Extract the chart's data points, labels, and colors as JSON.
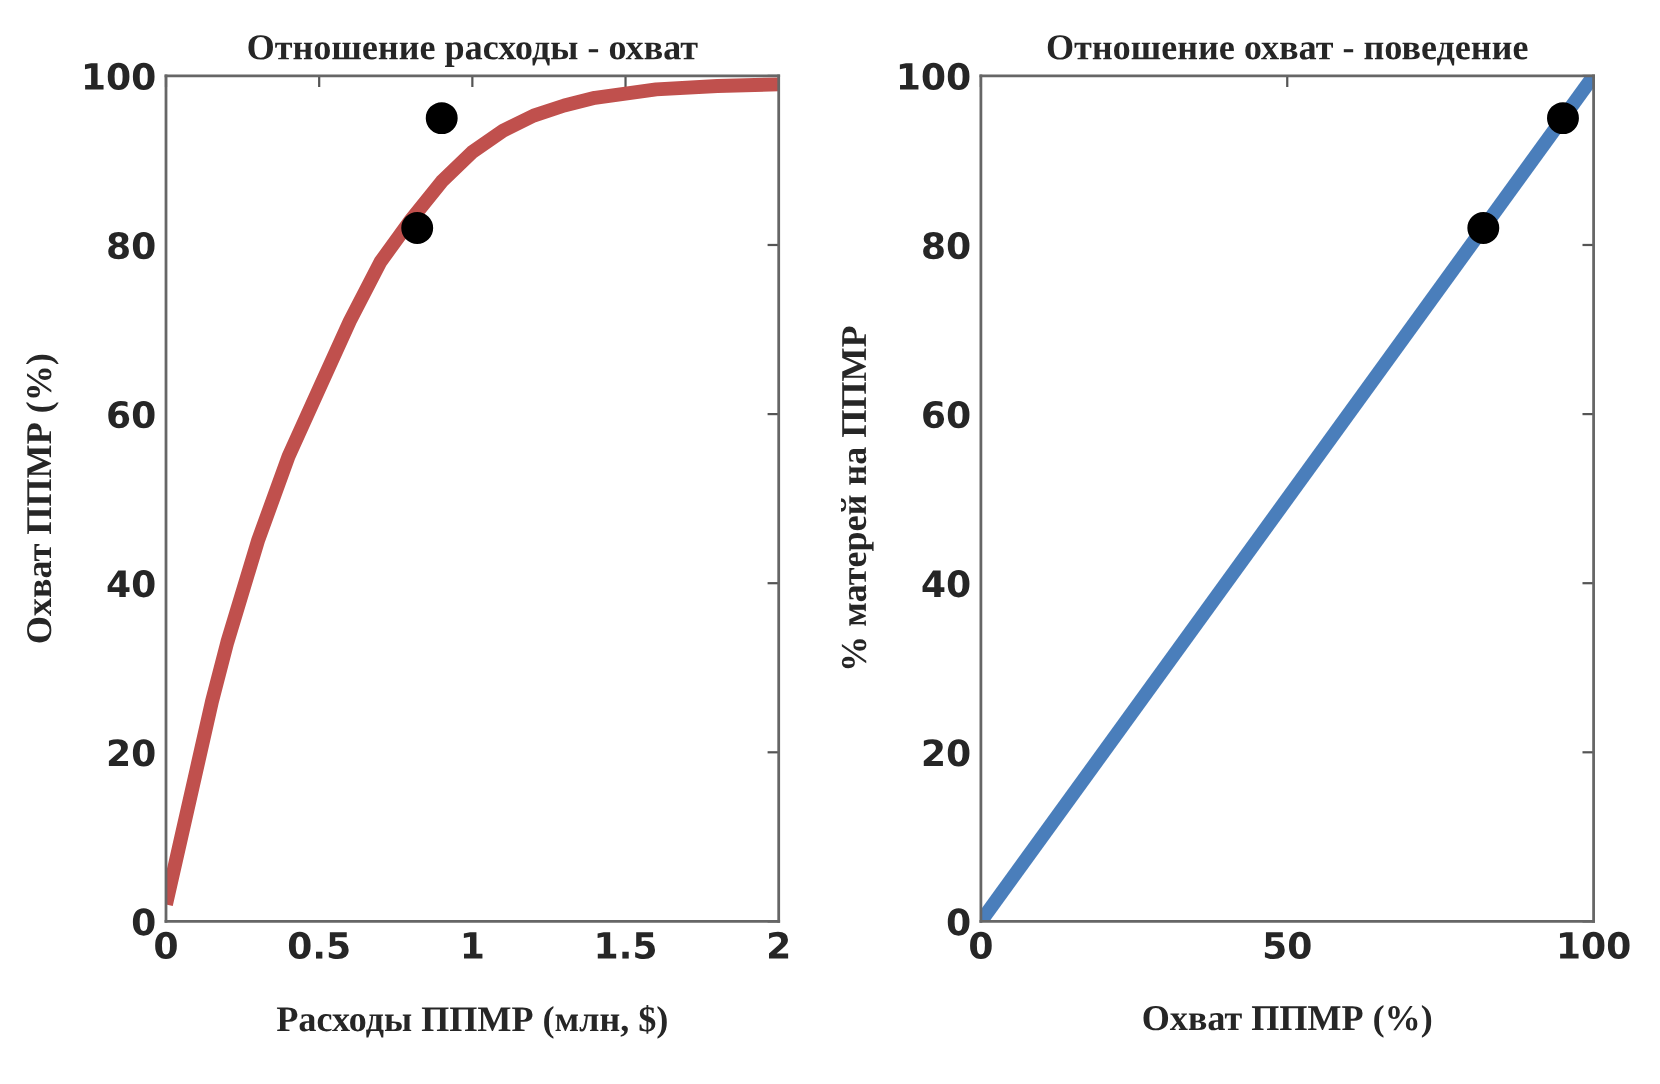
{
  "chart_data": [
    {
      "type": "line",
      "title": "Отношение расходы - охват",
      "xlabel": "Расходы ППМР (млн, $)",
      "ylabel": "Охват ППМР (%)",
      "xlim": [
        0,
        2
      ],
      "xticks": [
        0,
        0.5,
        1,
        1.5,
        2
      ],
      "ylim": [
        0,
        100
      ],
      "yticks": [
        0,
        20,
        40,
        60,
        80,
        100
      ],
      "grid": false,
      "legend": false,
      "series": [
        {
          "type": "line",
          "color": "#c0504d",
          "x": [
            0,
            0.05,
            0.1,
            0.15,
            0.2,
            0.3,
            0.4,
            0.5,
            0.6,
            0.7,
            0.8,
            0.9,
            1.0,
            1.1,
            1.2,
            1.3,
            1.4,
            1.6,
            1.8,
            2.0
          ],
          "values": [
            2,
            10,
            18,
            26,
            33,
            45,
            55,
            63,
            71,
            78,
            83,
            87.5,
            91,
            93.5,
            95.3,
            96.5,
            97.4,
            98.4,
            98.8,
            99
          ]
        },
        {
          "type": "scatter",
          "color": "#000000",
          "marker": "circle",
          "x": [
            0.82,
            0.9
          ],
          "values": [
            82,
            95
          ]
        }
      ]
    },
    {
      "type": "line",
      "title": "Отношение охват - поведение",
      "xlabel": "Охват ППМР (%)",
      "ylabel": "% матерей на ППМР",
      "xlim": [
        0,
        100
      ],
      "xticks": [
        0,
        50,
        100
      ],
      "ylim": [
        0,
        100
      ],
      "yticks": [
        0,
        20,
        40,
        60,
        80,
        100
      ],
      "grid": false,
      "legend": false,
      "series": [
        {
          "type": "line",
          "color": "#4a7ebb",
          "x": [
            0,
            100
          ],
          "values": [
            0,
            100
          ]
        },
        {
          "type": "scatter",
          "color": "#000000",
          "marker": "circle",
          "x": [
            82,
            95
          ],
          "values": [
            82,
            95
          ]
        }
      ]
    }
  ]
}
